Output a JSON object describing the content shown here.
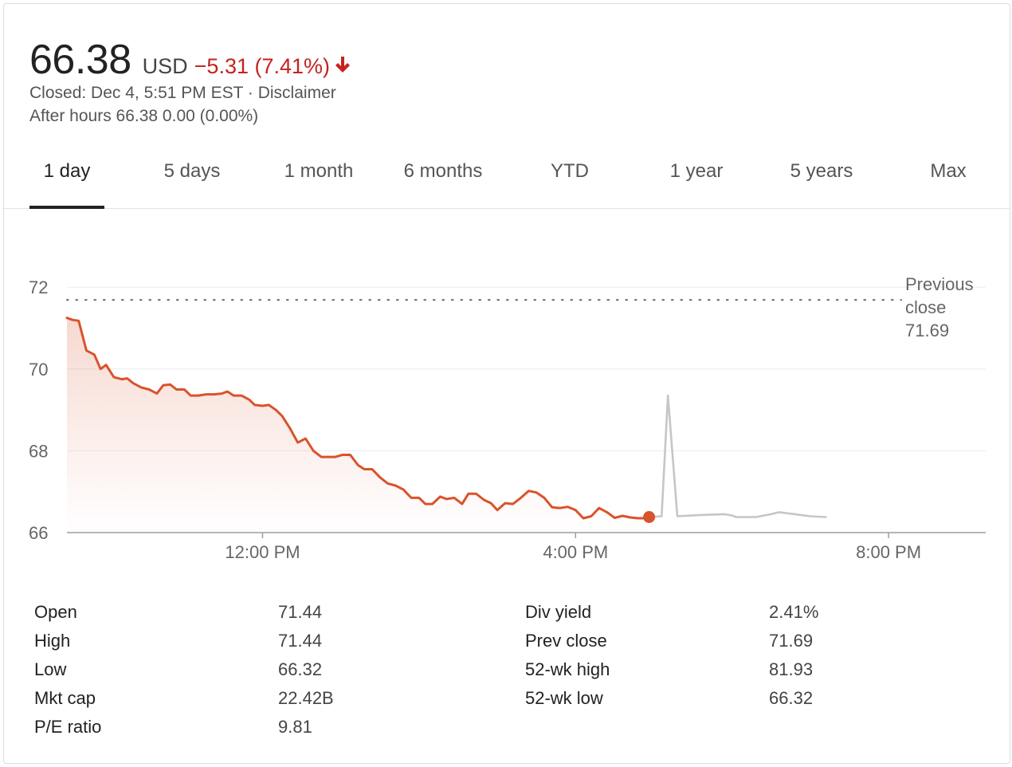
{
  "quote": {
    "price": "66.38",
    "currency": "USD",
    "change": "−5.31 (7.41%)",
    "closed_text": "Closed: Dec 4, 5:51 PM EST · Disclaimer",
    "after_hours": "After hours 66.38 0.00 (0.00%)",
    "down_color": "#c5221f"
  },
  "tabs": [
    {
      "label": "1 day",
      "active": true
    },
    {
      "label": "5 days"
    },
    {
      "label": "1 month"
    },
    {
      "label": "6 months"
    },
    {
      "label": "YTD"
    },
    {
      "label": "1 year"
    },
    {
      "label": "5 years"
    },
    {
      "label": "Max"
    }
  ],
  "chart_data": {
    "type": "line",
    "y_ticks": [
      66,
      68,
      70,
      72
    ],
    "ylim": [
      66,
      72.5
    ],
    "x_ticks": [
      {
        "label": "12:00 PM",
        "hour": 12
      },
      {
        "label": "4:00 PM",
        "hour": 16
      },
      {
        "label": "8:00 PM",
        "hour": 20
      }
    ],
    "xlim_hours": [
      9.5,
      21.2
    ],
    "previous_close": 71.69,
    "previous_close_label": [
      "Previous",
      "close",
      "71.69"
    ],
    "series": [
      {
        "session": "regular",
        "color": "#d9532c",
        "points": [
          [
            9.5,
            71.25
          ],
          [
            9.57,
            71.2
          ],
          [
            9.65,
            71.18
          ],
          [
            9.75,
            70.45
          ],
          [
            9.85,
            70.35
          ],
          [
            9.93,
            70.0
          ],
          [
            10.0,
            70.1
          ],
          [
            10.1,
            69.8
          ],
          [
            10.2,
            69.75
          ],
          [
            10.27,
            69.77
          ],
          [
            10.35,
            69.65
          ],
          [
            10.45,
            69.55
          ],
          [
            10.55,
            69.5
          ],
          [
            10.65,
            69.4
          ],
          [
            10.73,
            69.6
          ],
          [
            10.82,
            69.62
          ],
          [
            10.9,
            69.5
          ],
          [
            11.0,
            69.5
          ],
          [
            11.08,
            69.35
          ],
          [
            11.18,
            69.35
          ],
          [
            11.28,
            69.38
          ],
          [
            11.38,
            69.38
          ],
          [
            11.48,
            69.4
          ],
          [
            11.55,
            69.45
          ],
          [
            11.63,
            69.35
          ],
          [
            11.73,
            69.35
          ],
          [
            11.83,
            69.25
          ],
          [
            11.9,
            69.12
          ],
          [
            12.0,
            69.1
          ],
          [
            12.08,
            69.12
          ],
          [
            12.17,
            69.0
          ],
          [
            12.25,
            68.85
          ],
          [
            12.35,
            68.55
          ],
          [
            12.45,
            68.2
          ],
          [
            12.55,
            68.3
          ],
          [
            12.65,
            68.0
          ],
          [
            12.75,
            67.85
          ],
          [
            12.83,
            67.85
          ],
          [
            12.93,
            67.85
          ],
          [
            13.02,
            67.9
          ],
          [
            13.12,
            67.9
          ],
          [
            13.22,
            67.65
          ],
          [
            13.3,
            67.55
          ],
          [
            13.4,
            67.55
          ],
          [
            13.5,
            67.35
          ],
          [
            13.6,
            67.2
          ],
          [
            13.7,
            67.15
          ],
          [
            13.8,
            67.05
          ],
          [
            13.9,
            66.85
          ],
          [
            14.0,
            66.85
          ],
          [
            14.08,
            66.7
          ],
          [
            14.17,
            66.7
          ],
          [
            14.27,
            66.88
          ],
          [
            14.35,
            66.82
          ],
          [
            14.45,
            66.85
          ],
          [
            14.55,
            66.7
          ],
          [
            14.63,
            66.95
          ],
          [
            14.73,
            66.95
          ],
          [
            14.83,
            66.8
          ],
          [
            14.92,
            66.72
          ],
          [
            15.0,
            66.55
          ],
          [
            15.1,
            66.72
          ],
          [
            15.2,
            66.7
          ],
          [
            15.3,
            66.85
          ],
          [
            15.4,
            67.02
          ],
          [
            15.5,
            66.98
          ],
          [
            15.6,
            66.85
          ],
          [
            15.7,
            66.62
          ],
          [
            15.8,
            66.6
          ],
          [
            15.9,
            66.63
          ],
          [
            16.0,
            66.55
          ],
          [
            16.1,
            66.35
          ],
          [
            16.2,
            66.4
          ],
          [
            16.3,
            66.6
          ],
          [
            16.4,
            66.5
          ],
          [
            16.5,
            66.36
          ],
          [
            16.6,
            66.41
          ],
          [
            16.7,
            66.37
          ],
          [
            16.8,
            66.35
          ],
          [
            16.9,
            66.35
          ],
          [
            16.94,
            66.38
          ]
        ]
      },
      {
        "session": "after_hours",
        "color": "#c6c6c6",
        "points": [
          [
            16.94,
            66.38
          ],
          [
            17.1,
            66.4
          ],
          [
            17.18,
            69.35
          ],
          [
            17.3,
            66.4
          ],
          [
            17.6,
            66.43
          ],
          [
            17.9,
            66.45
          ],
          [
            18.0,
            66.42
          ],
          [
            18.05,
            66.38
          ],
          [
            18.3,
            66.38
          ],
          [
            18.5,
            66.45
          ],
          [
            18.6,
            66.5
          ],
          [
            18.8,
            66.45
          ],
          [
            19.0,
            66.4
          ],
          [
            19.2,
            66.38
          ]
        ]
      }
    ]
  },
  "stats": {
    "left": [
      {
        "label": "Open",
        "value": "71.44"
      },
      {
        "label": "High",
        "value": "71.44"
      },
      {
        "label": "Low",
        "value": "66.32"
      },
      {
        "label": "Mkt cap",
        "value": "22.42B"
      },
      {
        "label": "P/E ratio",
        "value": "9.81"
      }
    ],
    "right": [
      {
        "label": "Div yield",
        "value": "2.41%"
      },
      {
        "label": "Prev close",
        "value": "71.69"
      },
      {
        "label": "52-wk high",
        "value": "81.93"
      },
      {
        "label": "52-wk low",
        "value": "66.32"
      }
    ]
  }
}
